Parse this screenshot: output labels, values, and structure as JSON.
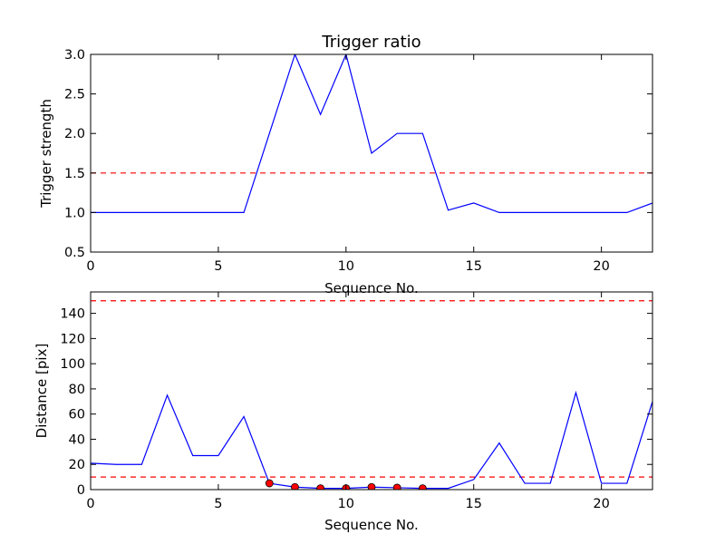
{
  "chart_data": [
    {
      "type": "line",
      "title": "Trigger ratio",
      "xlabel": "Sequence No.",
      "ylabel": "Trigger strength",
      "xlim": [
        0,
        22
      ],
      "ylim": [
        0.5,
        3.0
      ],
      "xticks": [
        0,
        5,
        10,
        15,
        20
      ],
      "yticks": [
        0.5,
        1.0,
        1.5,
        2.0,
        2.5,
        3.0
      ],
      "ytick_labels": [
        "0.5",
        "1.0",
        "1.5",
        "2.0",
        "2.5",
        "3.0"
      ],
      "grid": false,
      "series": [
        {
          "color": "#0000ff",
          "x": [
            0,
            1,
            2,
            3,
            4,
            5,
            6,
            7,
            8,
            9,
            10,
            11,
            12,
            13,
            14,
            15,
            16,
            17,
            18,
            19,
            20,
            21,
            22
          ],
          "values": [
            1.0,
            1.0,
            1.0,
            1.0,
            1.0,
            1.0,
            1.0,
            2.0,
            3.0,
            2.24,
            3.0,
            1.75,
            2.0,
            2.0,
            1.03,
            1.12,
            1.0,
            1.0,
            1.0,
            1.0,
            1.0,
            1.0,
            1.12
          ]
        }
      ],
      "thresholds": [
        {
          "y": 1.5,
          "color": "#ff0000",
          "style": "dashed"
        }
      ]
    },
    {
      "type": "line",
      "title": "",
      "xlabel": "Sequence No.",
      "ylabel": "Distance [pix]",
      "xlim": [
        0,
        22
      ],
      "ylim": [
        0,
        157
      ],
      "xticks": [
        0,
        5,
        10,
        15,
        20
      ],
      "yticks": [
        0,
        20,
        40,
        60,
        80,
        100,
        120,
        140
      ],
      "ytick_labels": [
        "0",
        "20",
        "40",
        "60",
        "80",
        "100",
        "120",
        "140"
      ],
      "grid": false,
      "series": [
        {
          "color": "#0000ff",
          "x": [
            0,
            1,
            2,
            3,
            4,
            5,
            6,
            7,
            8,
            9,
            10,
            11,
            12,
            13,
            14,
            15,
            16,
            17,
            18,
            19,
            20,
            21,
            22
          ],
          "values": [
            21,
            20,
            20,
            75,
            27,
            27,
            58,
            5,
            2,
            1,
            1,
            2,
            1.5,
            1,
            1,
            8,
            37,
            5,
            5,
            77,
            5,
            5,
            70
          ]
        }
      ],
      "markers": {
        "color": "#ff0000",
        "x": [
          7,
          8,
          9,
          10,
          11,
          12,
          13
        ],
        "values": [
          5,
          2,
          1,
          1,
          2,
          1.5,
          1
        ]
      },
      "thresholds": [
        {
          "y": 150,
          "color": "#ff0000",
          "style": "dashed"
        },
        {
          "y": 10,
          "color": "#ff0000",
          "style": "dashed"
        }
      ]
    }
  ]
}
